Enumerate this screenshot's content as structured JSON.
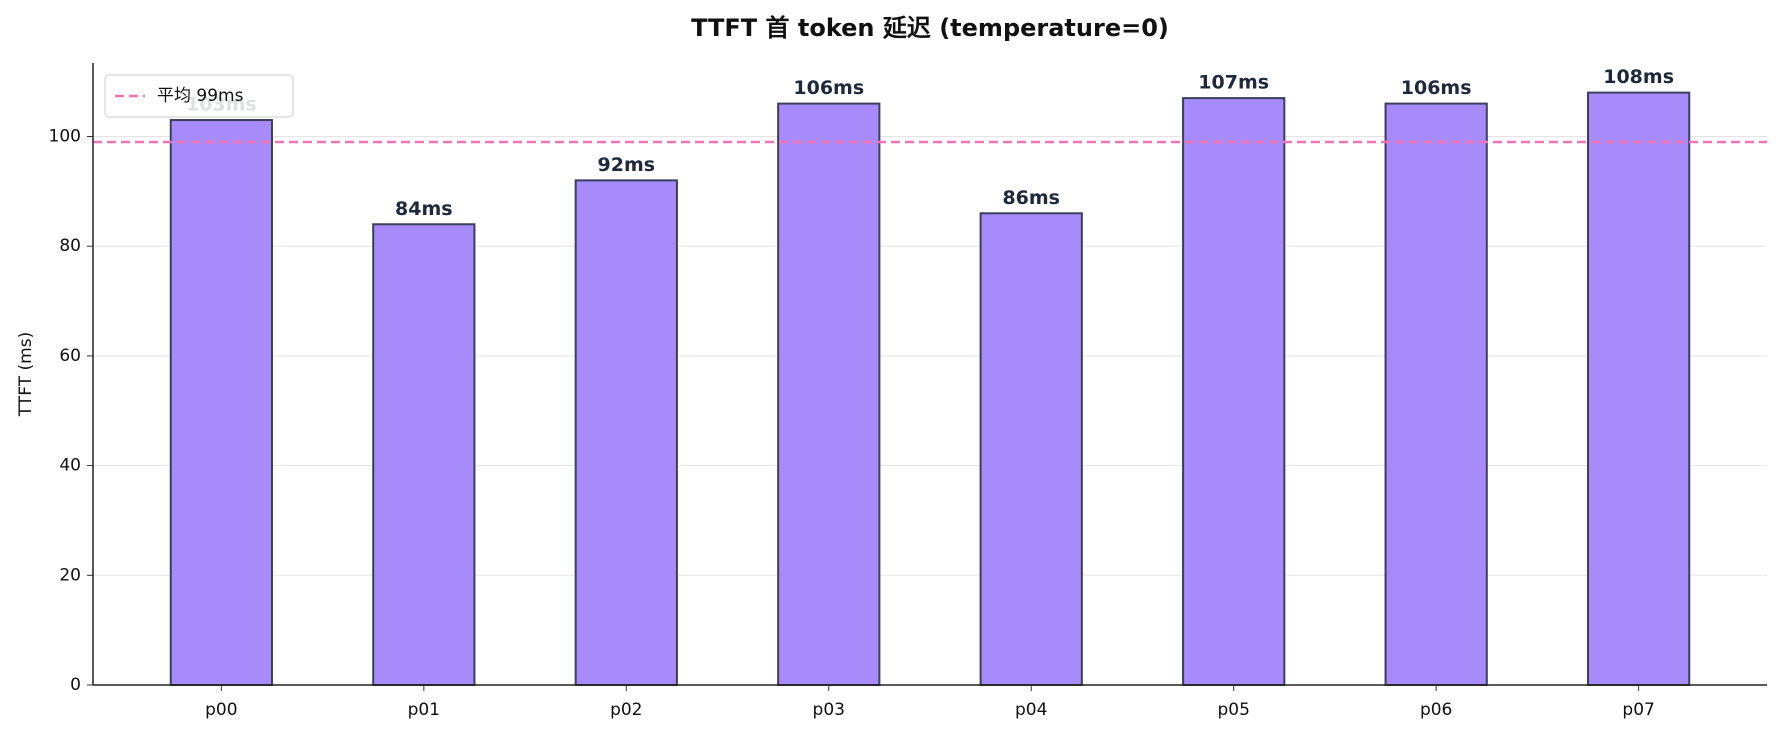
{
  "chart_data": {
    "type": "bar",
    "title": "TTFT 首 token 延迟 (temperature=0)",
    "ylabel": "TTFT (ms)",
    "categories": [
      "p00",
      "p01",
      "p02",
      "p03",
      "p04",
      "p05",
      "p06",
      "p07"
    ],
    "values": [
      103,
      84,
      92,
      106,
      86,
      107,
      106,
      108
    ],
    "value_labels": [
      "103ms",
      "84ms",
      "92ms",
      "106ms",
      "86ms",
      "107ms",
      "106ms",
      "108ms"
    ],
    "color": "#a78bfa",
    "edgecolor": "#3b3f5c",
    "ylim": [
      0,
      113.4
    ],
    "yticks": [
      0,
      20,
      40,
      60,
      80,
      100
    ],
    "grid": true,
    "mean_line": {
      "value": 99,
      "label": "平均 99ms",
      "color": "#f472b6"
    },
    "legend": "upper-left"
  }
}
